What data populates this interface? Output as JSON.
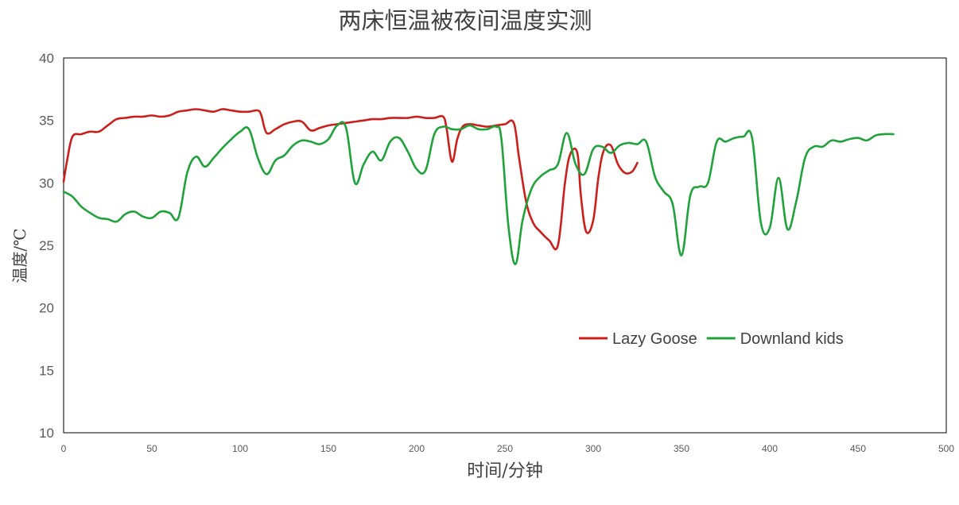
{
  "chart_data": {
    "type": "line",
    "title": "两床恒温被夜间温度实测",
    "xlabel": "时间/分钟",
    "ylabel": "温度/℃",
    "xlim": [
      0,
      500
    ],
    "ylim": [
      10,
      40
    ],
    "x_ticks": [
      0,
      50,
      100,
      150,
      200,
      250,
      300,
      350,
      400,
      450,
      500
    ],
    "y_ticks": [
      10,
      15,
      20,
      25,
      30,
      35,
      40
    ],
    "grid": false,
    "legend_position": "right, lower-middle",
    "series": [
      {
        "name": "Lazy Goose",
        "color": "#cc1f1a",
        "points": [
          [
            0,
            30.1
          ],
          [
            2,
            31.8
          ],
          [
            5,
            33.7
          ],
          [
            10,
            33.9
          ],
          [
            15,
            34.1
          ],
          [
            20,
            34.1
          ],
          [
            25,
            34.6
          ],
          [
            30,
            35.1
          ],
          [
            35,
            35.2
          ],
          [
            40,
            35.3
          ],
          [
            45,
            35.3
          ],
          [
            50,
            35.4
          ],
          [
            55,
            35.3
          ],
          [
            60,
            35.4
          ],
          [
            65,
            35.7
          ],
          [
            70,
            35.8
          ],
          [
            75,
            35.9
          ],
          [
            80,
            35.8
          ],
          [
            85,
            35.7
          ],
          [
            90,
            35.9
          ],
          [
            95,
            35.8
          ],
          [
            100,
            35.7
          ],
          [
            105,
            35.7
          ],
          [
            110,
            35.8
          ],
          [
            112,
            35.4
          ],
          [
            115,
            34.0
          ],
          [
            120,
            34.3
          ],
          [
            125,
            34.7
          ],
          [
            130,
            34.9
          ],
          [
            135,
            34.9
          ],
          [
            140,
            34.2
          ],
          [
            145,
            34.4
          ],
          [
            150,
            34.6
          ],
          [
            155,
            34.7
          ],
          [
            160,
            34.8
          ],
          [
            165,
            34.9
          ],
          [
            170,
            35.0
          ],
          [
            175,
            35.1
          ],
          [
            180,
            35.1
          ],
          [
            185,
            35.2
          ],
          [
            190,
            35.2
          ],
          [
            195,
            35.2
          ],
          [
            200,
            35.3
          ],
          [
            205,
            35.2
          ],
          [
            210,
            35.2
          ],
          [
            215,
            35.3
          ],
          [
            217,
            34.3
          ],
          [
            220,
            31.7
          ],
          [
            223,
            33.5
          ],
          [
            226,
            34.5
          ],
          [
            230,
            34.7
          ],
          [
            235,
            34.6
          ],
          [
            240,
            34.5
          ],
          [
            245,
            34.6
          ],
          [
            250,
            34.7
          ],
          [
            255,
            34.8
          ],
          [
            258,
            32.0
          ],
          [
            262,
            28.5
          ],
          [
            266,
            26.8
          ],
          [
            270,
            26.1
          ],
          [
            275,
            25.4
          ],
          [
            280,
            25.0
          ],
          [
            284,
            30.0
          ],
          [
            287,
            32.3
          ],
          [
            291,
            32.4
          ],
          [
            293,
            29.0
          ],
          [
            296,
            26.1
          ],
          [
            300,
            27.0
          ],
          [
            303,
            30.5
          ],
          [
            306,
            32.6
          ],
          [
            310,
            33.0
          ],
          [
            314,
            31.5
          ],
          [
            318,
            30.8
          ],
          [
            322,
            30.9
          ],
          [
            325,
            31.6
          ]
        ]
      },
      {
        "name": "Downland kids",
        "color": "#1fa23a",
        "points": [
          [
            0,
            29.3
          ],
          [
            5,
            28.9
          ],
          [
            10,
            28.1
          ],
          [
            15,
            27.6
          ],
          [
            20,
            27.2
          ],
          [
            25,
            27.1
          ],
          [
            30,
            26.9
          ],
          [
            35,
            27.5
          ],
          [
            40,
            27.7
          ],
          [
            45,
            27.3
          ],
          [
            50,
            27.2
          ],
          [
            55,
            27.7
          ],
          [
            60,
            27.6
          ],
          [
            65,
            27.2
          ],
          [
            70,
            30.8
          ],
          [
            75,
            32.1
          ],
          [
            80,
            31.3
          ],
          [
            85,
            32.0
          ],
          [
            90,
            32.8
          ],
          [
            95,
            33.5
          ],
          [
            100,
            34.1
          ],
          [
            105,
            34.3
          ],
          [
            110,
            32.0
          ],
          [
            115,
            30.7
          ],
          [
            120,
            31.8
          ],
          [
            125,
            32.2
          ],
          [
            130,
            33.0
          ],
          [
            135,
            33.4
          ],
          [
            140,
            33.3
          ],
          [
            145,
            33.1
          ],
          [
            150,
            33.5
          ],
          [
            155,
            34.6
          ],
          [
            160,
            34.4
          ],
          [
            165,
            30.0
          ],
          [
            170,
            31.5
          ],
          [
            175,
            32.5
          ],
          [
            180,
            31.8
          ],
          [
            185,
            33.3
          ],
          [
            190,
            33.6
          ],
          [
            195,
            32.5
          ],
          [
            200,
            31.1
          ],
          [
            205,
            31.0
          ],
          [
            210,
            33.9
          ],
          [
            215,
            34.5
          ],
          [
            220,
            34.3
          ],
          [
            225,
            34.3
          ],
          [
            230,
            34.6
          ],
          [
            235,
            34.3
          ],
          [
            240,
            34.3
          ],
          [
            245,
            34.5
          ],
          [
            248,
            33.5
          ],
          [
            252,
            26.5
          ],
          [
            256,
            23.5
          ],
          [
            260,
            27.0
          ],
          [
            265,
            29.5
          ],
          [
            270,
            30.5
          ],
          [
            275,
            31.0
          ],
          [
            280,
            31.5
          ],
          [
            285,
            34.0
          ],
          [
            290,
            31.5
          ],
          [
            295,
            30.7
          ],
          [
            300,
            32.7
          ],
          [
            305,
            32.9
          ],
          [
            310,
            32.4
          ],
          [
            315,
            33.0
          ],
          [
            320,
            33.2
          ],
          [
            325,
            33.1
          ],
          [
            330,
            33.3
          ],
          [
            335,
            30.5
          ],
          [
            340,
            29.3
          ],
          [
            345,
            28.3
          ],
          [
            350,
            24.2
          ],
          [
            355,
            29.0
          ],
          [
            360,
            29.7
          ],
          [
            365,
            30.0
          ],
          [
            370,
            33.3
          ],
          [
            375,
            33.3
          ],
          [
            380,
            33.6
          ],
          [
            385,
            33.7
          ],
          [
            390,
            33.6
          ],
          [
            395,
            26.8
          ],
          [
            400,
            26.4
          ],
          [
            405,
            30.4
          ],
          [
            410,
            26.3
          ],
          [
            415,
            28.5
          ],
          [
            420,
            32.0
          ],
          [
            425,
            32.9
          ],
          [
            430,
            32.9
          ],
          [
            435,
            33.4
          ],
          [
            440,
            33.3
          ],
          [
            445,
            33.5
          ],
          [
            450,
            33.6
          ],
          [
            455,
            33.4
          ],
          [
            460,
            33.8
          ],
          [
            465,
            33.9
          ],
          [
            470,
            33.9
          ]
        ]
      }
    ]
  }
}
